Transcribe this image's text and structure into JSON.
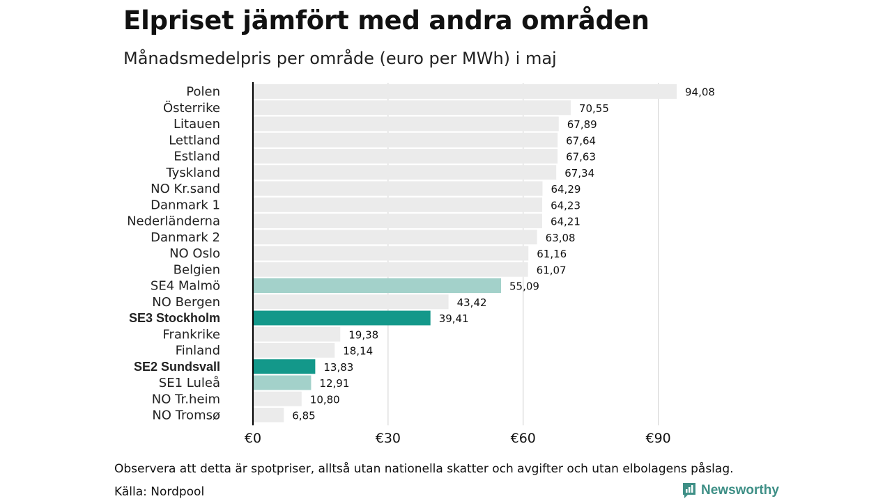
{
  "header": {
    "title": "Elpriset jämfört med andra områden",
    "subtitle": "Månadsmedelpris per område (euro per MWh) i maj"
  },
  "footer": {
    "note": "Observera att detta är spotpriser, alltså utan nationella skatter och avgifter och utan elbolagens påslag.",
    "source": "Källa: Nordpool",
    "brand": "Newsworthy",
    "brand_icon": "newsworthy-logo-icon"
  },
  "colors": {
    "default_bar": "#ebebeb",
    "highlight_bar": "#13988a",
    "light_highlight_bar": "#a3d1ca",
    "axis": "#000000",
    "grid": "#d0d0d0",
    "brand": "#3e8f86"
  },
  "chart_data": {
    "type": "bar",
    "orientation": "horizontal",
    "categories": [
      "Polen",
      "Österrike",
      "Litauen",
      "Lettland",
      "Estland",
      "Tyskland",
      "NO Kr.sand",
      "Danmark 1",
      "Nederländerna",
      "Danmark 2",
      "NO Oslo",
      "Belgien",
      "SE4 Malmö",
      "NO Bergen",
      "SE3 Stockholm",
      "Frankrike",
      "Finland",
      "SE2 Sundsvall",
      "SE1 Luleå",
      "NO Tr.heim",
      "NO Tromsø"
    ],
    "values": [
      94.08,
      70.55,
      67.89,
      67.64,
      67.63,
      67.34,
      64.29,
      64.23,
      64.21,
      63.08,
      61.16,
      61.07,
      55.09,
      43.42,
      39.41,
      19.38,
      18.14,
      13.83,
      12.91,
      10.8,
      6.85
    ],
    "value_labels": [
      "94,08",
      "70,55",
      "67,89",
      "67,64",
      "67,63",
      "67,34",
      "64,29",
      "64,23",
      "64,21",
      "63,08",
      "61,16",
      "61,07",
      "55,09",
      "43,42",
      "39,41",
      "19,38",
      "18,14",
      "13,83",
      "12,91",
      "10,80",
      "6,85"
    ],
    "bar_style": [
      "default",
      "default",
      "default",
      "default",
      "default",
      "default",
      "default",
      "default",
      "default",
      "default",
      "default",
      "default",
      "light",
      "default",
      "highlight",
      "default",
      "default",
      "highlight",
      "light",
      "default",
      "default"
    ],
    "bold_labels": [
      "SE3 Stockholm",
      "SE2 Sundsvall"
    ],
    "xticks": [
      0,
      30,
      60,
      90
    ],
    "xtick_labels": [
      "€0",
      "€30",
      "€60",
      "€90"
    ],
    "xlim": [
      0,
      94.08
    ],
    "grid": true,
    "title": "Elpriset jämfört med andra områden",
    "subtitle": "Månadsmedelpris per område (euro per MWh) i maj",
    "xlabel": "",
    "ylabel": ""
  }
}
